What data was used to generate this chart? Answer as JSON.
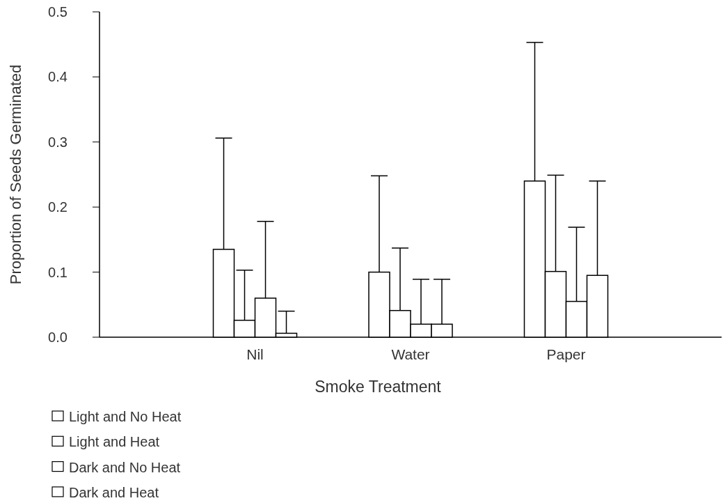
{
  "chart_data": {
    "type": "bar",
    "xlabel": "Smoke Treatment",
    "ylabel": "Proportion of Seeds Germinated",
    "categories": [
      "Nil",
      "Water",
      "Paper"
    ],
    "series": [
      {
        "name": "Light and No Heat",
        "color": "#ffffff",
        "values": [
          0.135,
          0.1,
          0.24
        ],
        "errors": [
          [
            0.135,
            0.306
          ],
          [
            0.1,
            0.248
          ],
          [
            0.24,
            0.453
          ]
        ]
      },
      {
        "name": "Light and Heat",
        "color": "#ffffff",
        "values": [
          0.026,
          0.041,
          0.101
        ],
        "errors": [
          [
            0.026,
            0.103
          ],
          [
            0.041,
            0.137
          ],
          [
            0.101,
            0.249
          ]
        ]
      },
      {
        "name": "Dark and No Heat",
        "color": "#ffffff",
        "values": [
          0.06,
          0.02,
          0.055
        ],
        "errors": [
          [
            0.06,
            0.178
          ],
          [
            0.02,
            0.089
          ],
          [
            0.055,
            0.169
          ]
        ]
      },
      {
        "name": "Dark and Heat",
        "color": "#ffffff",
        "values": [
          0.006,
          0.02,
          0.095
        ],
        "errors": [
          [
            0.006,
            0.04
          ],
          [
            0.02,
            0.089
          ],
          [
            0.095,
            0.24
          ]
        ]
      }
    ],
    "ylim": [
      0,
      0.5
    ],
    "yticks": [
      {
        "value": 0,
        "label": "0.0"
      },
      {
        "value": 0.1,
        "label": "0.1"
      },
      {
        "value": 0.2,
        "label": "0.2"
      },
      {
        "value": 0.3,
        "label": "0.3"
      },
      {
        "value": 0.4,
        "label": "0.4"
      },
      {
        "value": 0.5,
        "label": "0.5"
      }
    ],
    "grid": false,
    "legend": "bottom left"
  }
}
